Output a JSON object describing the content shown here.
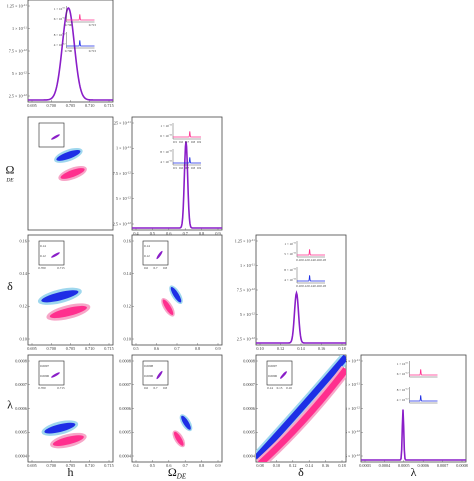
{
  "figure": {
    "colors": {
      "pink": "#ff2f8e",
      "pink_light": "#f7a6c8",
      "blue": "#1e2ee6",
      "blue_light": "#9fd7ee",
      "purple": "#8a1ec8",
      "frame": "#444444",
      "inset_frame": "#222222"
    }
  },
  "chart_data": {
    "type": "corner",
    "parameters": [
      {
        "key": "h",
        "label": "h"
      },
      {
        "key": "omega_de",
        "label": "Ω",
        "label_sub": "DE"
      },
      {
        "key": "delta",
        "label": "δ"
      },
      {
        "key": "lambda",
        "label": "λ"
      }
    ],
    "diagonal_panels": [
      {
        "param": "h",
        "x_ticks": [
          "0.695",
          "0.700",
          "0.705",
          "0.710",
          "0.715"
        ],
        "x_lim": [
          0.695,
          0.715
        ],
        "y_ticks": [
          "2.5 × 10^-12",
          "5 × 10^-12",
          "7.5 × 10^-12",
          "1 × 10^-11",
          "1.25 × 10^-11"
        ],
        "y_lim": [
          0,
          1.3e-11
        ],
        "main_peak": {
          "center": 0.7045,
          "sigma": 0.0014,
          "height": 1.0,
          "color": "purple"
        },
        "insets": [
          {
            "color": "pink",
            "y_ticks": [
              "1 × 10^-11",
              "6 × 10^-12"
            ],
            "x_ticks": [
              "0.700",
              "0.715"
            ],
            "center": 0.7045
          },
          {
            "color": "blue",
            "y_ticks": [
              "8 × 10^-12",
              "4 × 10^-12"
            ],
            "x_ticks": [
              "0.700",
              "0.715"
            ],
            "center": 0.7045
          }
        ]
      },
      {
        "param": "omega_de",
        "x_ticks": [
          "0.4",
          "0.5",
          "0.6",
          "0.7",
          "0.8",
          "0.9"
        ],
        "x_lim": [
          0.4,
          0.9
        ],
        "y_ticks": [
          "2.5 × 10^-12",
          "5 × 10^-12",
          "7.5 × 10^-12",
          "1 × 10^-11",
          "1.25 × 10^-11"
        ],
        "y_lim": [
          0,
          1.3e-11
        ],
        "main_peak": {
          "center": 0.7,
          "sigma": 0.009,
          "height": 0.84,
          "color": "purple"
        },
        "insets": [
          {
            "color": "pink",
            "y_ticks": [
              "1 × 10^-11",
              "6 × 10^-12"
            ],
            "x_ticks": [
              "0.5",
              "0.6",
              "0.7",
              "0.8",
              "0.9"
            ],
            "center": 0.7
          },
          {
            "color": "blue",
            "y_ticks": [
              "8 × 10^-12",
              "4 × 10^-12"
            ],
            "x_ticks": [
              "0.5",
              "0.6",
              "0.7",
              "0.8",
              "0.9"
            ],
            "center": 0.7
          }
        ]
      },
      {
        "param": "delta",
        "x_ticks": [
          "0.10",
          "0.12",
          "0.14",
          "0.16",
          "0.18"
        ],
        "x_lim": [
          0.1,
          0.18
        ],
        "y_ticks": [
          "2.5 × 10^-12",
          "5 × 10^-12",
          "7.5 × 10^-12",
          "1 × 10^-11",
          "1.25 × 10^-11"
        ],
        "y_lim": [
          0,
          1.3e-11
        ],
        "main_peak": {
          "center": 0.136,
          "sigma": 0.0018,
          "height": 0.5,
          "color": "purple"
        },
        "insets": [
          {
            "color": "pink",
            "y_ticks": [
              "1 × 10^-11",
              "5 × 10^-12"
            ],
            "x_ticks": [
              "0.10",
              "0.12",
              "0.14",
              "0.16",
              "0.18"
            ],
            "center": 0.136
          },
          {
            "color": "blue",
            "y_ticks": [
              "8 × 10^-12",
              "4 × 10^-12"
            ],
            "x_ticks": [
              "0.10",
              "0.12",
              "0.14",
              "0.16",
              "0.18"
            ],
            "center": 0.136
          }
        ]
      },
      {
        "param": "lambda",
        "x_ticks": [
          "0.0003",
          "0.0004",
          "0.0005",
          "0.0006",
          "0.0007",
          "0.0008"
        ],
        "x_lim": [
          0.0003,
          0.0008
        ],
        "y_ticks": [
          "2.5 × 10^-12",
          "5 × 10^-12",
          "7.5 × 10^-12",
          "1 × 10^-11",
          "1.25 × 10^-11"
        ],
        "y_lim": [
          0,
          1.3e-11
        ],
        "main_peak": {
          "center": 0.0005,
          "sigma": 3.5e-06,
          "height": 0.52,
          "color": "purple"
        },
        "insets": [
          {
            "color": "pink",
            "y_ticks": [
              "1 × 10^-11",
              "6 × 10^-12"
            ],
            "x_ticks": [],
            "center": 0.0005
          },
          {
            "color": "blue",
            "y_ticks": [
              "8 × 10^-12",
              "4 × 10^-12"
            ],
            "x_ticks": [],
            "center": 0.0005
          }
        ]
      }
    ],
    "offdiagonal_panels": [
      {
        "x_param": "h",
        "y_param": "omega_de",
        "x_ticks": [],
        "y_ticks": [],
        "x_lim": [
          0.695,
          0.715
        ],
        "y_lim": [
          0.4,
          0.9
        ],
        "ellipses": [
          {
            "color": "blue",
            "cx": 0.7045,
            "cy": 0.73,
            "major": 0.006,
            "minor": 0.0016,
            "angle": -20
          },
          {
            "color": "pink",
            "cx": 0.7055,
            "cy": 0.65,
            "major": 0.006,
            "minor": 0.0016,
            "angle": -20
          }
        ],
        "inset": {
          "y_ticks": [],
          "x_ticks": [],
          "color": "purple"
        }
      },
      {
        "x_param": "h",
        "y_param": "delta",
        "x_ticks": [
          "0.695",
          "0.700",
          "0.705",
          "0.710",
          "0.715"
        ],
        "y_ticks": [
          "0.10",
          "0.12",
          "0.14",
          "0.16"
        ],
        "x_lim": [
          0.695,
          0.715
        ],
        "y_lim": [
          0.1,
          0.17
        ],
        "ellipses": [
          {
            "color": "blue",
            "cx": 0.7025,
            "cy": 0.131,
            "major": 0.009,
            "minor": 0.0019,
            "angle": -14
          },
          {
            "color": "pink",
            "cx": 0.7045,
            "cy": 0.121,
            "major": 0.009,
            "minor": 0.0019,
            "angle": -14
          }
        ],
        "inset": {
          "y_ticks": [
            "0.14",
            "0.12"
          ],
          "x_ticks": [
            "0.700",
            "0.715"
          ],
          "color": "purple"
        }
      },
      {
        "x_param": "omega_de",
        "y_param": "delta",
        "x_ticks": [
          "0.5",
          "0.6",
          "0.7",
          "0.8",
          "0.9"
        ],
        "y_ticks": [
          "0.10",
          "0.12",
          "0.14",
          "0.16"
        ],
        "x_lim": [
          0.45,
          0.9
        ],
        "y_lim": [
          0.1,
          0.17
        ],
        "ellipses": [
          {
            "color": "blue",
            "cx": 0.67,
            "cy": 0.132,
            "major": 0.1,
            "minor": 0.013,
            "angle": 58
          },
          {
            "color": "pink",
            "cx": 0.63,
            "cy": 0.124,
            "major": 0.1,
            "minor": 0.013,
            "angle": 58
          }
        ],
        "inset": {
          "y_ticks": [
            "0.14",
            "0.12"
          ],
          "x_ticks": [
            "0.6",
            "0.7",
            "0.8"
          ],
          "color": "purple"
        }
      },
      {
        "x_param": "h",
        "y_param": "lambda",
        "x_ticks": [
          "0.695",
          "0.700",
          "0.705",
          "0.710",
          "0.715"
        ],
        "y_ticks": [
          "0.0004",
          "0.0005",
          "0.0006",
          "0.0007",
          "0.0008"
        ],
        "x_lim": [
          0.695,
          0.715
        ],
        "y_lim": [
          0.0003,
          0.0009
        ],
        "ellipses": [
          {
            "color": "blue",
            "cx": 0.7025,
            "cy": 0.00049,
            "major": 0.0075,
            "minor": 0.0018,
            "angle": -14
          },
          {
            "color": "pink",
            "cx": 0.7045,
            "cy": 0.00042,
            "major": 0.0075,
            "minor": 0.0018,
            "angle": -14
          }
        ],
        "inset": {
          "y_ticks": [
            "0.0007",
            "0.0006"
          ],
          "x_ticks": [
            "0.700",
            "0.715"
          ],
          "color": "purple"
        }
      },
      {
        "x_param": "omega_de",
        "y_param": "lambda",
        "x_ticks": [
          "0.4",
          "0.5",
          "0.6",
          "0.7",
          "0.8",
          "0.9"
        ],
        "y_ticks": [
          "0.0004",
          "0.0005",
          "0.0006",
          "0.0007",
          "0.0008"
        ],
        "x_lim": [
          0.4,
          0.9
        ],
        "y_lim": [
          0.0003,
          0.0009
        ],
        "ellipses": [
          {
            "color": "blue",
            "cx": 0.7,
            "cy": 0.00052,
            "major": 0.1,
            "minor": 0.012,
            "angle": 58
          },
          {
            "color": "pink",
            "cx": 0.66,
            "cy": 0.00043,
            "major": 0.1,
            "minor": 0.012,
            "angle": 58
          }
        ],
        "inset": {
          "y_ticks": [
            "0.0008",
            "0.0006"
          ],
          "x_ticks": [
            "0.6",
            "0.7",
            "0.8"
          ],
          "color": "purple"
        }
      },
      {
        "x_param": "delta",
        "y_param": "lambda",
        "x_ticks": [
          "0.08",
          "0.10",
          "0.12",
          "0.14",
          "0.16",
          "0.18"
        ],
        "y_ticks": [
          "0.0004",
          "0.0005",
          "0.0006",
          "0.0007",
          "0.0008"
        ],
        "x_lim": [
          0.08,
          0.19
        ],
        "y_lim": [
          0.0003,
          0.0009
        ],
        "bands": [
          {
            "color": "blue",
            "from": [
              0.08,
              0.00032
            ],
            "ctrl": [
              0.13,
              0.00057
            ],
            "to": [
              0.19,
              0.00089
            ]
          },
          {
            "color": "pink",
            "from": [
              0.085,
              0.00029
            ],
            "ctrl": [
              0.14,
              0.00052
            ],
            "to": [
              0.19,
              0.00082
            ]
          }
        ],
        "inset": {
          "y_ticks": [
            "0.0007",
            "0.0006"
          ],
          "x_ticks": [
            "0.14",
            "0.15",
            "0.16"
          ],
          "color": "purple"
        }
      }
    ]
  }
}
